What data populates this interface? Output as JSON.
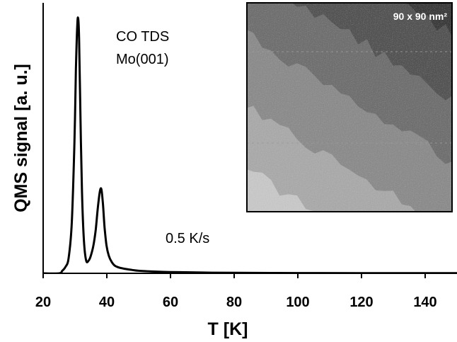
{
  "chart_data": {
    "type": "line",
    "title": "",
    "xlabel": "T [K]",
    "ylabel": "QMS signal [a. u.]",
    "xlim": [
      20,
      150
    ],
    "ylim": [
      0,
      1.05
    ],
    "xticks": [
      20,
      40,
      60,
      80,
      100,
      120,
      140
    ],
    "yticks_shown": false,
    "grid": false,
    "legend": "none",
    "series": [
      {
        "color": "#000000",
        "x": [
          20,
          25,
          26,
          27,
          28,
          29,
          29.8,
          30.3,
          30.7,
          31.0,
          31.3,
          31.7,
          32.2,
          32.8,
          33.5,
          34.3,
          35.0,
          35.8,
          36.5,
          37.2,
          37.8,
          38.3,
          38.8,
          39.3,
          39.9,
          40.6,
          41.5,
          42.5,
          44,
          46,
          48,
          50,
          55,
          60,
          70,
          80,
          100,
          120,
          150
        ],
        "y": [
          0.0,
          0.0,
          0.01,
          0.025,
          0.06,
          0.2,
          0.5,
          0.8,
          0.97,
          1.0,
          0.92,
          0.62,
          0.32,
          0.13,
          0.05,
          0.05,
          0.07,
          0.11,
          0.17,
          0.26,
          0.32,
          0.33,
          0.27,
          0.18,
          0.11,
          0.07,
          0.045,
          0.03,
          0.022,
          0.017,
          0.013,
          0.01,
          0.007,
          0.005,
          0.003,
          0.002,
          0.001,
          0.0008,
          0.0005
        ]
      }
    ],
    "annotations": [
      "CO TDS",
      "Mo(001)",
      "0.5 K/s"
    ],
    "inset": {
      "type": "image",
      "label": "90 x 90 nm²",
      "terraces": [
        {
          "shade": "#c8c8c8"
        },
        {
          "shade": "#aaaaaa"
        },
        {
          "shade": "#8c8c8c"
        },
        {
          "shade": "#707070"
        },
        {
          "shade": "#545454"
        },
        {
          "shade": "#3a3a3a"
        },
        {
          "shade": "#252525"
        }
      ]
    }
  }
}
